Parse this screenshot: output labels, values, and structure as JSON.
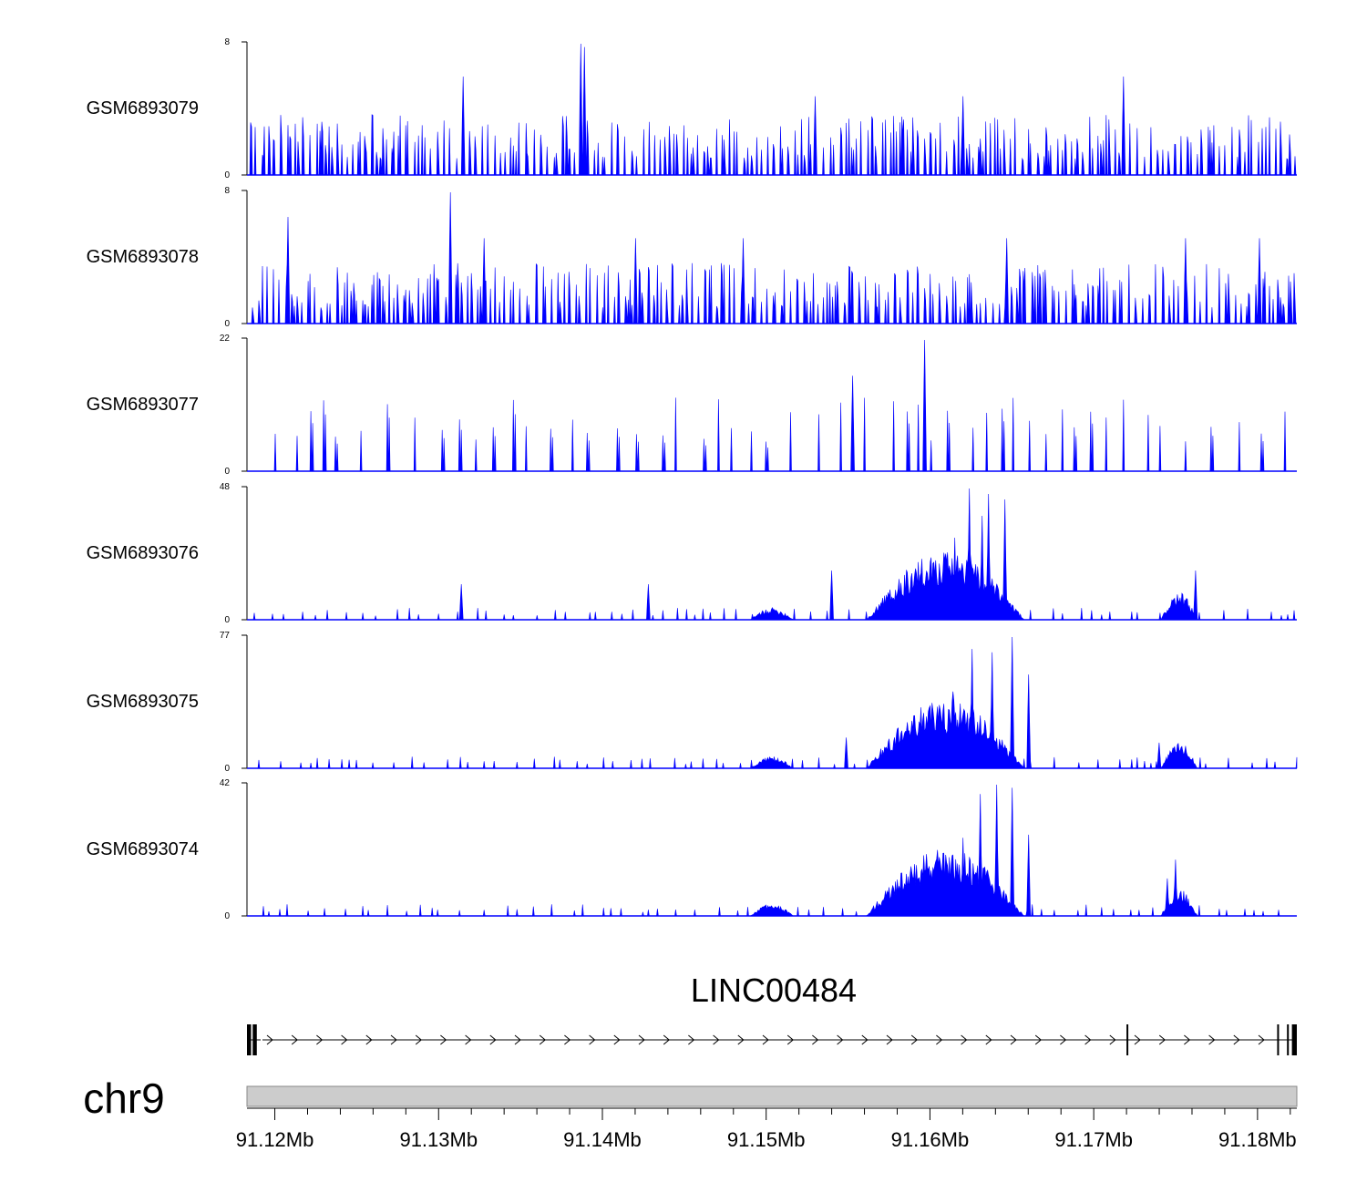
{
  "chart_data": {
    "type": "area",
    "title": "",
    "fill_color": "#0000ff",
    "x_range_mb": [
      91.1183,
      91.1824
    ],
    "tracks": [
      {
        "name": "GSM6893079",
        "ymax": 8,
        "ymin": 0,
        "profile": "noise",
        "seed": 79,
        "peaks": [
          [
            91.1315,
            6
          ],
          [
            91.1387,
            8
          ],
          [
            91.1389,
            7.8
          ],
          [
            91.1718,
            6
          ],
          [
            91.153,
            4.8
          ],
          [
            91.162,
            4.8
          ]
        ]
      },
      {
        "name": "GSM6893078",
        "ymax": 8,
        "ymin": 0,
        "profile": "noise",
        "seed": 78,
        "peaks": [
          [
            91.1307,
            8
          ],
          [
            91.1208,
            6.5
          ],
          [
            91.1328,
            5.2
          ],
          [
            91.142,
            5.2
          ],
          [
            91.1486,
            5.2
          ],
          [
            91.1647,
            5.2
          ],
          [
            91.1756,
            5.2
          ],
          [
            91.1801,
            5.2
          ]
        ]
      },
      {
        "name": "GSM6893077",
        "ymax": 22,
        "ymin": 0,
        "profile": "sparse",
        "seed": 77,
        "peaks": [
          [
            91.1553,
            16
          ],
          [
            91.1597,
            22
          ]
        ]
      },
      {
        "name": "GSM6893076",
        "ymax": 48,
        "ymin": 0,
        "profile": "peak",
        "seed": 76,
        "peaks": [
          [
            91.1624,
            48
          ],
          [
            91.1636,
            46
          ],
          [
            91.1646,
            44
          ],
          [
            91.1632,
            38
          ],
          [
            91.1615,
            30
          ],
          [
            91.154,
            18
          ],
          [
            91.1762,
            18
          ],
          [
            91.1428,
            13
          ],
          [
            91.1314,
            13
          ]
        ]
      },
      {
        "name": "GSM6893075",
        "ymax": 77,
        "ymin": 0,
        "profile": "peak",
        "seed": 75,
        "peaks": [
          [
            91.165,
            77
          ],
          [
            91.1638,
            68
          ],
          [
            91.1626,
            70
          ],
          [
            91.166,
            55
          ],
          [
            91.1614,
            45
          ],
          [
            91.1549,
            18
          ],
          [
            91.174,
            15
          ]
        ]
      },
      {
        "name": "GSM6893074",
        "ymax": 42,
        "ymin": 0,
        "profile": "peak",
        "seed": 74,
        "peaks": [
          [
            91.1641,
            42
          ],
          [
            91.165,
            41
          ],
          [
            91.1631,
            39
          ],
          [
            91.162,
            25
          ],
          [
            91.166,
            26
          ],
          [
            91.175,
            18
          ],
          [
            91.1745,
            12
          ]
        ]
      }
    ],
    "gene": {
      "name": "LINC00484",
      "strand": "+",
      "start_mb": 91.1183,
      "end_mb": 91.1824,
      "exons_mb": [
        [
          91.1183,
          91.11855
        ],
        [
          91.11865,
          91.1189
        ],
        [
          91.172,
          91.17205
        ],
        [
          91.1812,
          91.18125
        ],
        [
          91.1818,
          91.18185
        ],
        [
          91.1821,
          91.1824
        ]
      ]
    },
    "chromosome": "chr9",
    "x_tick_labels": [
      "91.12Mb",
      "91.13Mb",
      "91.14Mb",
      "91.15Mb",
      "91.16Mb",
      "91.17Mb",
      "91.18Mb"
    ],
    "x_ticks_mb": [
      91.12,
      91.13,
      91.14,
      91.15,
      91.16,
      91.17,
      91.18
    ],
    "x_minor_step_mb": 0.002
  }
}
